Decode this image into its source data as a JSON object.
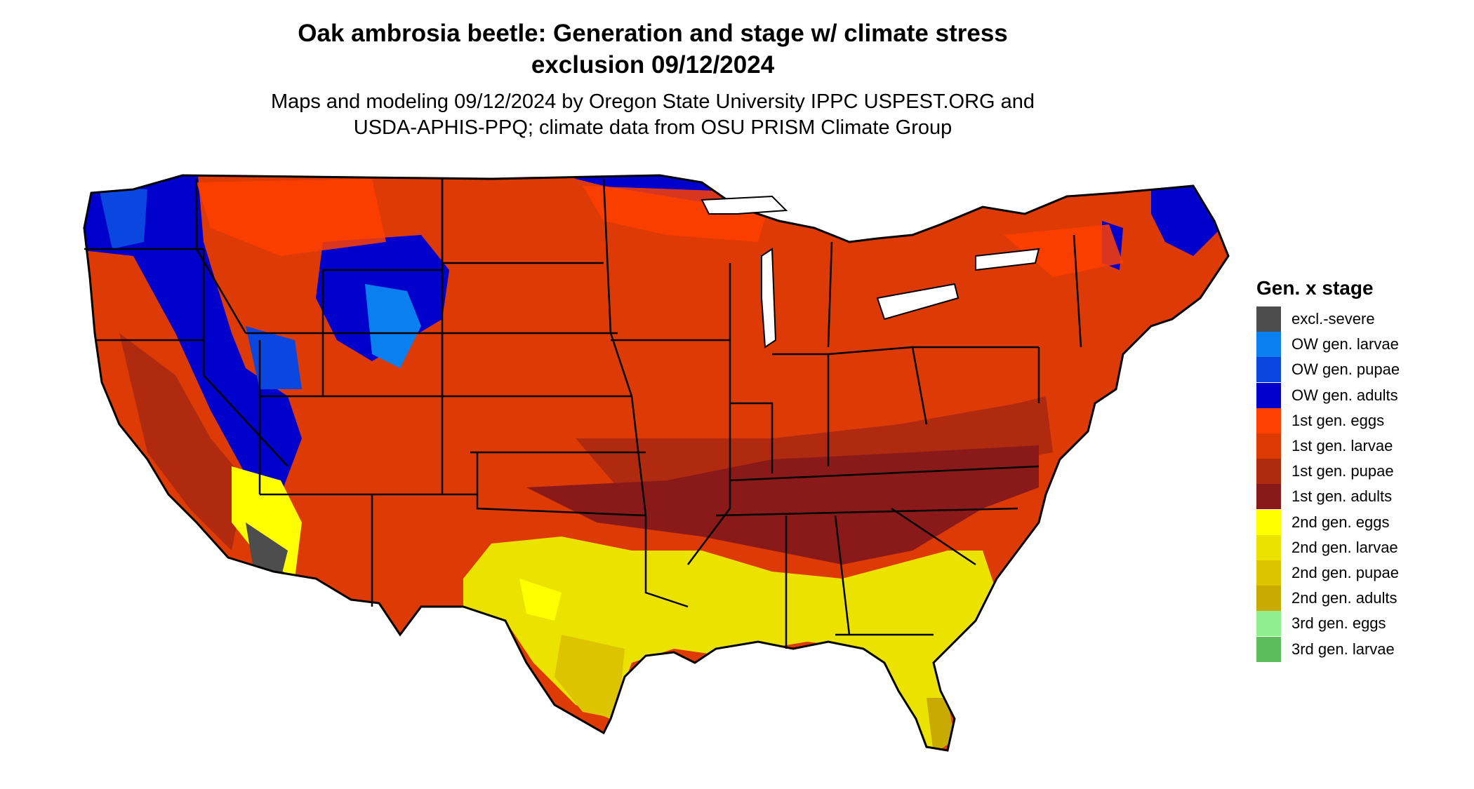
{
  "title_line1": "Oak ambrosia beetle: Generation and stage w/ climate stress",
  "title_line2": "exclusion 09/12/2024",
  "subtitle_line1": "Maps and modeling 09/12/2024 by Oregon State University IPPC USPEST.ORG and",
  "subtitle_line2": "USDA-APHIS-PPQ; climate data from OSU PRISM Climate Group",
  "legend": {
    "title": "Gen. x stage",
    "items": [
      {
        "label": "excl.-severe",
        "color": "#4d4d4d"
      },
      {
        "label": "OW gen. larvae",
        "color": "#0a7ff0"
      },
      {
        "label": "OW gen. pupae",
        "color": "#0a46e0"
      },
      {
        "label": "OW gen. adults",
        "color": "#0000cc"
      },
      {
        "label": "1st gen. eggs",
        "color": "#ff4000"
      },
      {
        "label": "1st gen. larvae",
        "color": "#dd3a06"
      },
      {
        "label": "1st gen. pupae",
        "color": "#b02a10"
      },
      {
        "label": "1st gen. adults",
        "color": "#8a1a1a"
      },
      {
        "label": "2nd gen. eggs",
        "color": "#ffff00"
      },
      {
        "label": "2nd gen. larvae",
        "color": "#ebe200"
      },
      {
        "label": "2nd gen. pupae",
        "color": "#dcc400"
      },
      {
        "label": "2nd gen. adults",
        "color": "#c8aa00"
      },
      {
        "label": "3rd gen. eggs",
        "color": "#90ee90"
      },
      {
        "label": "3rd gen. larvae",
        "color": "#5cbd5c"
      }
    ]
  }
}
